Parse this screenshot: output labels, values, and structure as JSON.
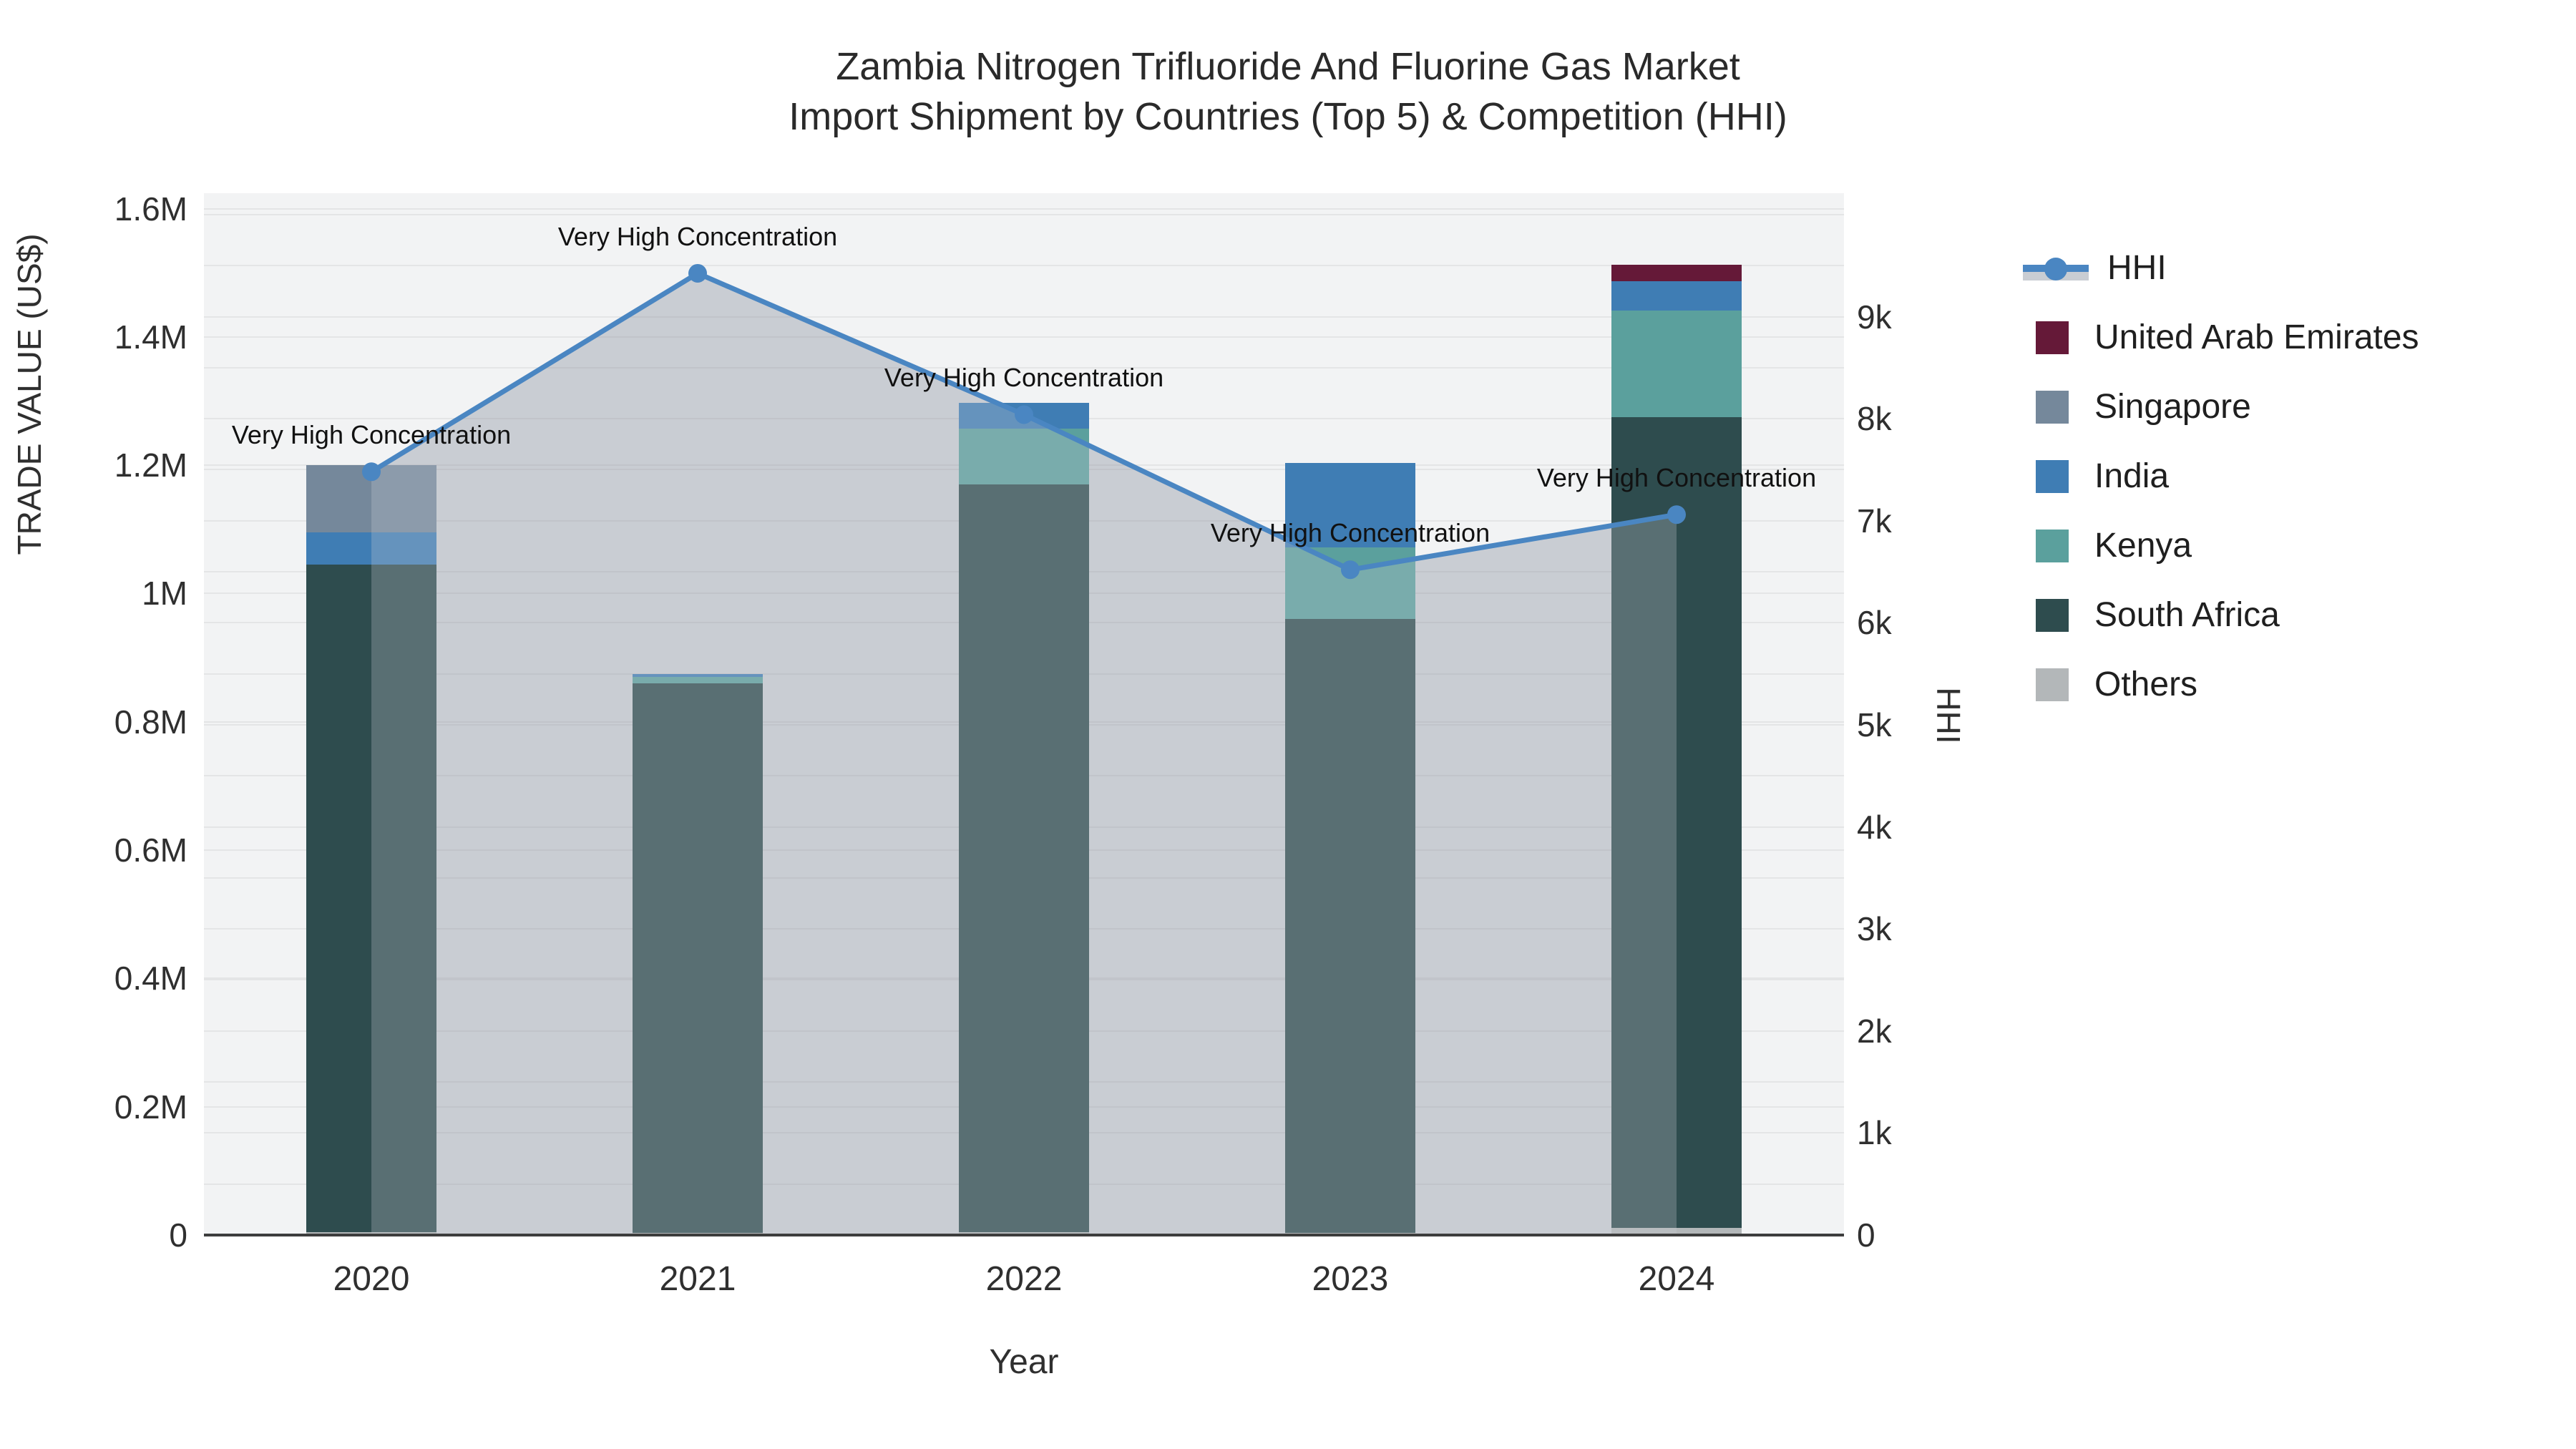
{
  "title": {
    "line1": "Zambia Nitrogen Trifluoride And Fluorine Gas Market",
    "line2": "Import Shipment by Countries (Top 5) & Competition (HHI)"
  },
  "axes": {
    "x": {
      "title": "Year",
      "tick_labels": [
        "2020",
        "2021",
        "2022",
        "2023",
        "2024"
      ]
    },
    "y_left": {
      "title": "TRADE VALUE (US$)",
      "tick_labels": [
        "0",
        "0.2M",
        "0.4M",
        "0.6M",
        "0.8M",
        "1M",
        "1.2M",
        "1.4M",
        "1.6M"
      ],
      "tick_step": 200000,
      "max": 1624000
    },
    "y_right": {
      "title": "HHI",
      "tick_labels": [
        "0",
        "1k",
        "2k",
        "3k",
        "4k",
        "5k",
        "6k",
        "7k",
        "8k",
        "9k"
      ],
      "tick_step": 1000,
      "grid_step": 500,
      "max": 10210
    }
  },
  "legend": {
    "items": [
      {
        "label": "HHI",
        "type": "line",
        "color": "#4a86c2",
        "fill_color": "#c9cdd3"
      },
      {
        "label": "United Arab Emirates",
        "type": "box",
        "color": "#651938"
      },
      {
        "label": "Singapore",
        "type": "box",
        "color": "#75889b"
      },
      {
        "label": "India",
        "type": "box",
        "color": "#3f7db4"
      },
      {
        "label": "Kenya",
        "type": "box",
        "color": "#5ba09d"
      },
      {
        "label": "South Africa",
        "type": "box",
        "color": "#2e4c4e"
      },
      {
        "label": "Others",
        "type": "box",
        "color": "#b3b7b9"
      }
    ]
  },
  "chart_data": {
    "type": "combo_stacked_bar_line",
    "title": "Zambia Nitrogen Trifluoride And Fluorine Gas Market Import Shipment by Countries (Top 5) & Competition (HHI)",
    "xlabel": "Year",
    "ylabel_left": "TRADE VALUE (US$)",
    "ylabel_right": "HHI",
    "ylim_left": [
      0,
      1600000
    ],
    "ylim_right": [
      0,
      10000
    ],
    "grid": true,
    "legend_position": "right",
    "categories": [
      "2020",
      "2021",
      "2022",
      "2023",
      "2024"
    ],
    "bar_unit": "US$",
    "bar_series": [
      {
        "name": "United Arab Emirates",
        "color": "#651938",
        "values": [
          0,
          0,
          0,
          0,
          25000
        ]
      },
      {
        "name": "Singapore",
        "color": "#75889b",
        "values": [
          105000,
          0,
          0,
          0,
          0
        ]
      },
      {
        "name": "India",
        "color": "#3f7db4",
        "values": [
          50000,
          4000,
          40000,
          131000,
          46000
        ]
      },
      {
        "name": "Kenya",
        "color": "#5ba09d",
        "values": [
          0,
          10000,
          87000,
          112000,
          166000
        ]
      },
      {
        "name": "South Africa",
        "color": "#2e4c4e",
        "values": [
          1041000,
          857000,
          1166000,
          957000,
          1264000
        ]
      },
      {
        "name": "Others",
        "color": "#b3b7b9",
        "values": [
          4000,
          3000,
          4000,
          3000,
          11000
        ]
      }
    ],
    "bar_totals": [
      1200000,
      874000,
      1297000,
      1203000,
      1512000
    ],
    "line_series": {
      "name": "HHI",
      "color": "#4a86c2",
      "area_fill_color": "#c9cdd3",
      "values": [
        7480,
        9425,
        8040,
        6520,
        7060
      ]
    },
    "annotations": [
      {
        "x": "2020",
        "text": "Very High Concentration"
      },
      {
        "x": "2021",
        "text": "Very High Concentration"
      },
      {
        "x": "2022",
        "text": "Very High Concentration"
      },
      {
        "x": "2023",
        "text": "Very High Concentration"
      },
      {
        "x": "2024",
        "text": "Very High Concentration"
      }
    ]
  },
  "style": {
    "plot_bg": "#f2f3f4",
    "grid_color": "rgba(0,0,0,0.055)",
    "axis_line_color": "#3d3d3d",
    "overlay_color": "rgba(201,205,211,0.28)"
  }
}
